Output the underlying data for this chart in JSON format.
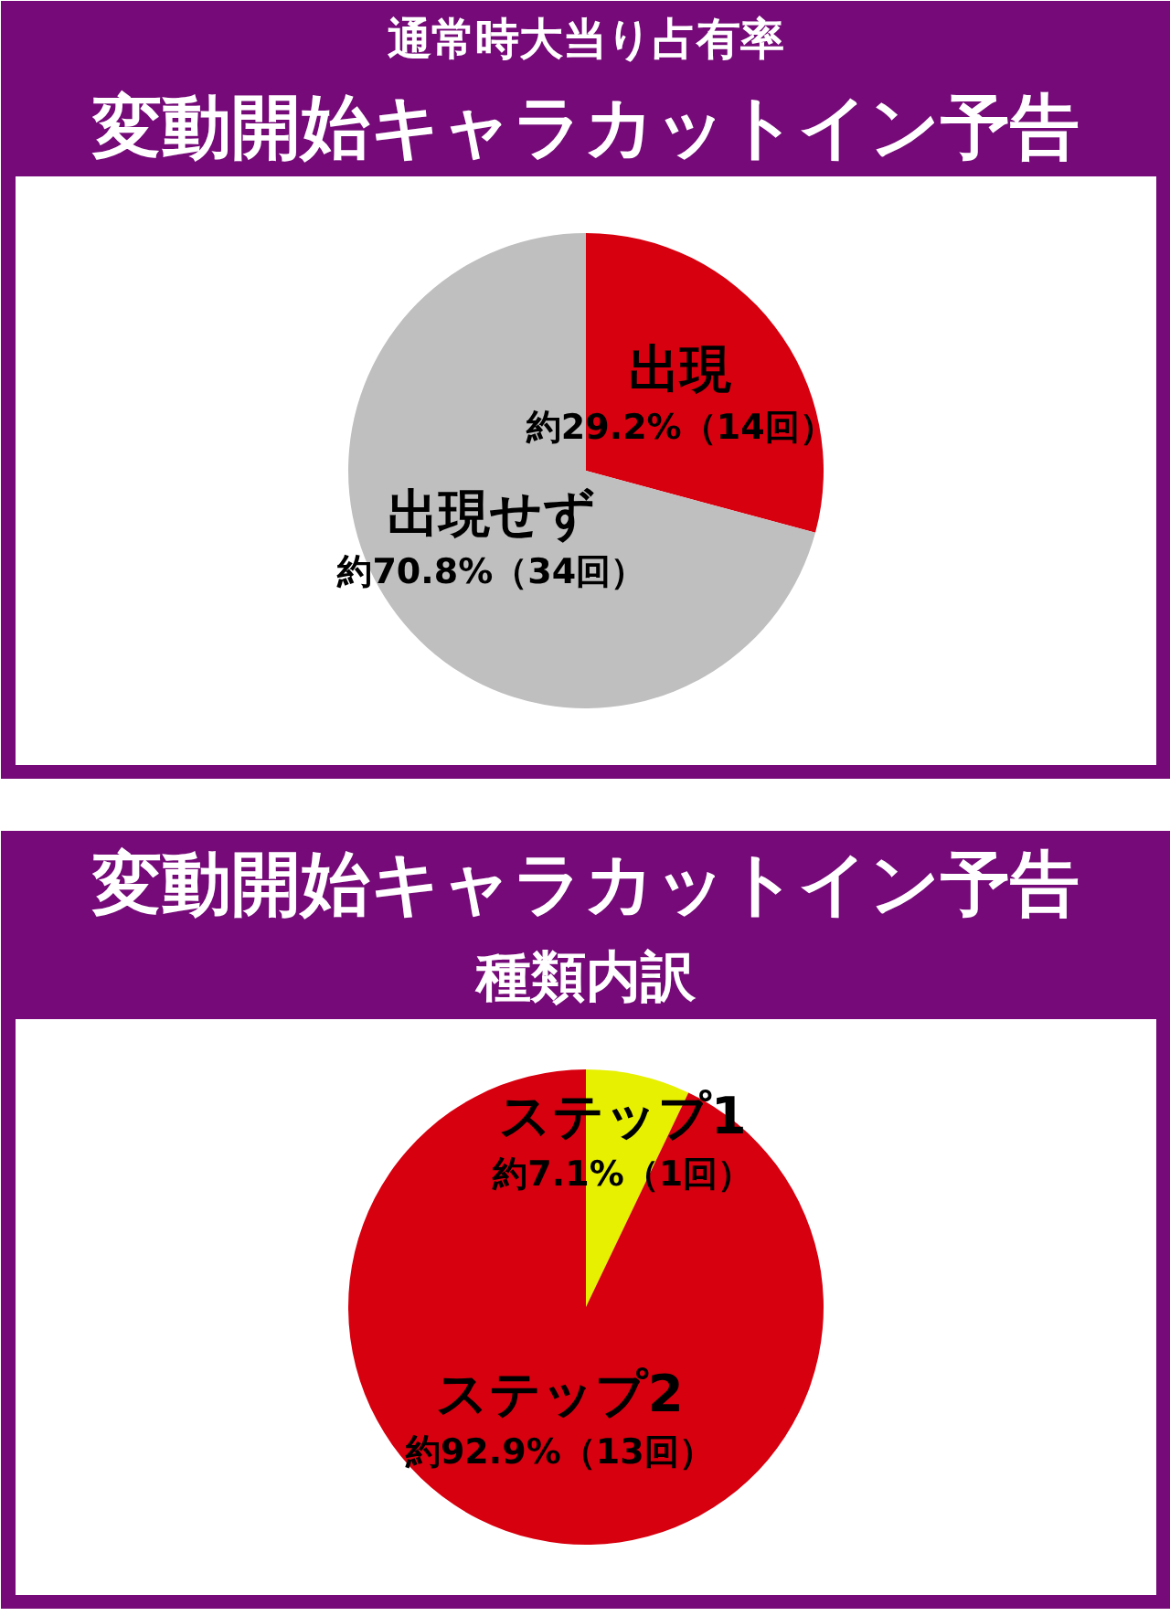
{
  "chart_data": [
    {
      "type": "pie",
      "title": "通常時大当り占有率",
      "subtitle": "変動開始キャラカットイン予告",
      "categories": [
        "出現",
        "出現せず"
      ],
      "values": [
        29.2,
        70.8
      ],
      "colors": [
        "#d7000f",
        "#bfbfbf"
      ],
      "value_labels": [
        "約29.2%（14回）",
        "約70.8%（34回）"
      ]
    },
    {
      "type": "pie",
      "title": "変動開始キャラカットイン予告",
      "subtitle": "種類内訳",
      "categories": [
        "ステップ1",
        "ステップ2"
      ],
      "values": [
        7.1,
        92.9
      ],
      "colors": [
        "#e6f000",
        "#d7000f"
      ],
      "value_labels": [
        "約7.1%（1回）",
        "約92.9%（13回）"
      ]
    }
  ]
}
